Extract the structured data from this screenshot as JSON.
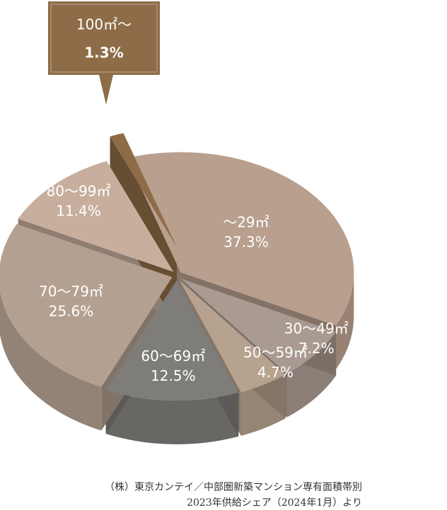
{
  "chart_data": {
    "type": "pie",
    "categories": [
      "〜29㎡",
      "30〜49㎡",
      "50〜59㎡",
      "60〜69㎡",
      "70〜79㎡",
      "80〜99㎡",
      "100㎡〜"
    ],
    "values": [
      37.3,
      7.2,
      4.7,
      12.5,
      25.6,
      11.4,
      1.3
    ],
    "value_labels": [
      "37.3%",
      "7.2%",
      "4.7%",
      "12.5%",
      "25.6%",
      "11.4%",
      "1.3%"
    ],
    "colors": [
      "#b89f8e",
      "#a99b91",
      "#b7a28f",
      "#7f7d7a",
      "#b3a091",
      "#c8ae9d",
      "#8d6c47"
    ],
    "source": [
      "（株）東京カンテイ／中部圏新築マンション専有面積帯別",
      "2023年供給シェア（2024年1月）より"
    ]
  }
}
